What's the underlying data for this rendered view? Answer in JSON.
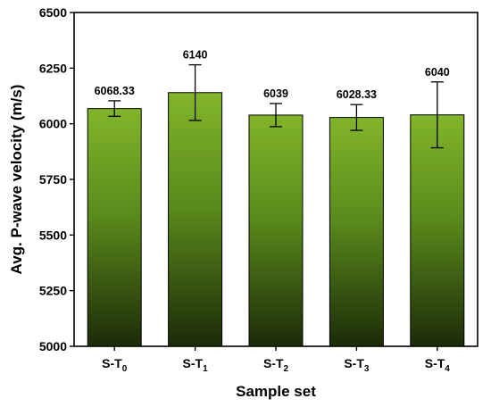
{
  "chart_data": {
    "type": "bar",
    "title": "",
    "xlabel": "Sample set",
    "ylabel": "Avg. P-wave velocity (m/s)",
    "ylim": [
      5000,
      6500
    ],
    "yticks": [
      5000,
      5250,
      5500,
      5750,
      6000,
      6250,
      6500
    ],
    "grid": false,
    "categories": [
      {
        "base": "S-T",
        "sub": "0"
      },
      {
        "base": "S-T",
        "sub": "1"
      },
      {
        "base": "S-T",
        "sub": "2"
      },
      {
        "base": "S-T",
        "sub": "3"
      },
      {
        "base": "S-T",
        "sub": "4"
      }
    ],
    "values": [
      6068.33,
      6140,
      6039,
      6028.33,
      6040
    ],
    "value_labels": [
      "6068.33",
      "6140",
      "6039",
      "6028.33",
      "6040"
    ],
    "error": [
      35,
      125,
      52,
      58,
      148
    ],
    "colors": {
      "bar_top": "#82b52a",
      "bar_bottom": "#1c2b08",
      "bar_stroke": "#000000"
    }
  }
}
